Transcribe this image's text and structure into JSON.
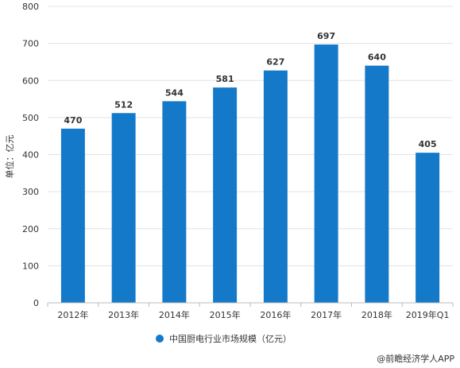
{
  "chart_data": {
    "type": "bar",
    "categories": [
      "2012年",
      "2013年",
      "2014年",
      "2015年",
      "2016年",
      "2017年",
      "2018年",
      "2019年Q1"
    ],
    "series": [
      {
        "name": "中国厨电行业市场规模（亿元）",
        "values": [
          470,
          512,
          544,
          581,
          627,
          697,
          640,
          405
        ]
      }
    ],
    "data_labels": [
      "470",
      "512",
      "544",
      "581",
      "627",
      "697",
      "640",
      "405"
    ],
    "ylabel": "单位：亿元",
    "xlabel": "",
    "ylim": [
      0,
      800
    ],
    "yticks": [
      "0",
      "100",
      "200",
      "300",
      "400",
      "500",
      "600",
      "700",
      "800"
    ],
    "grid": "horizontal",
    "legend_position": "bottom",
    "bar_color": "#1479c8",
    "grid_color": "#e3e3e3",
    "axis_color": "#bbbbbb"
  },
  "credit": "@前瞻经济学人APP"
}
